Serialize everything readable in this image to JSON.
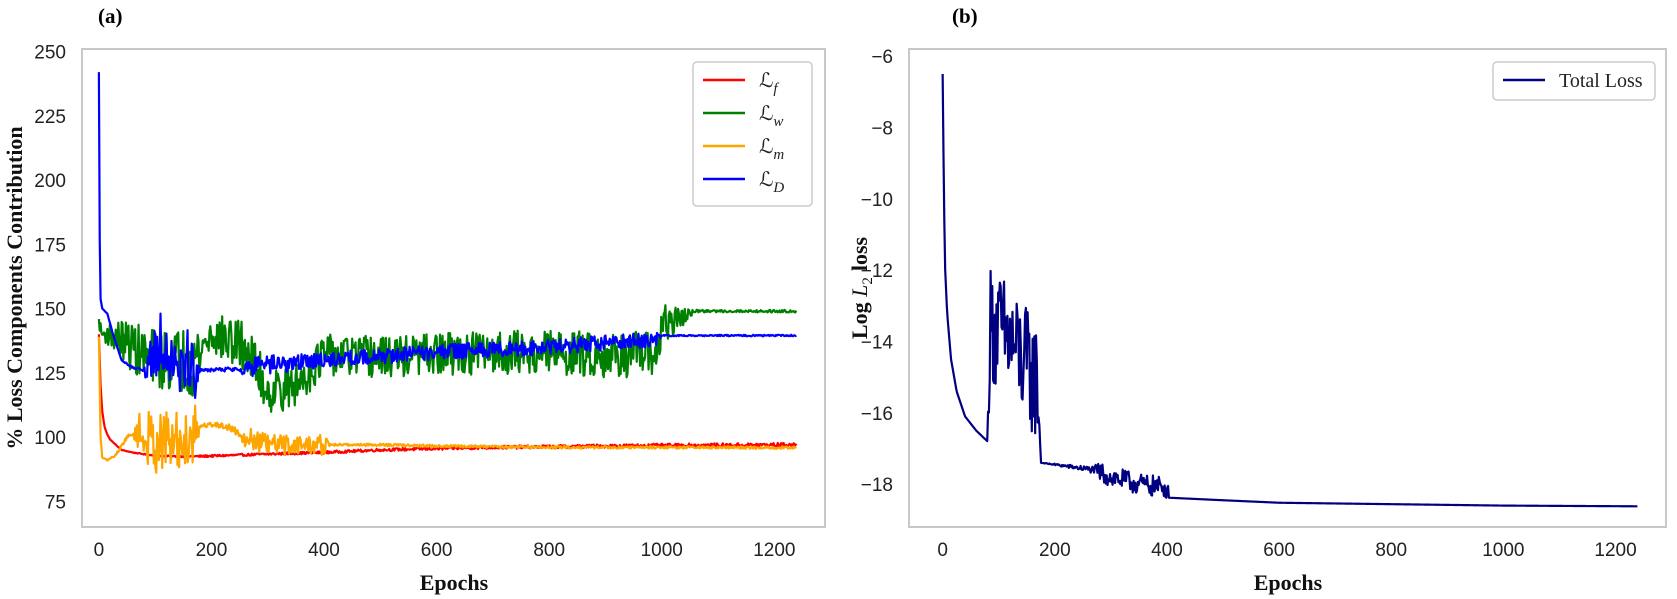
{
  "chart_data": [
    {
      "panel": "(a)",
      "type": "line",
      "xlabel": "Epochs",
      "ylabel": "% Loss Components Contribution",
      "xlim": [
        -30,
        1290
      ],
      "ylim": [
        65,
        251
      ],
      "xticks": [
        0,
        200,
        400,
        600,
        800,
        1000,
        1200
      ],
      "yticks": [
        75,
        100,
        125,
        150,
        175,
        200,
        225,
        250
      ],
      "grid": false,
      "legend_position": "top-right",
      "series": [
        {
          "name": "ℒ",
          "sub": "f",
          "color": "#ff0000",
          "points": [
            [
              0,
              140
            ],
            [
              3,
              120
            ],
            [
              6,
              110
            ],
            [
              10,
              104
            ],
            [
              15,
              101
            ],
            [
              20,
              99
            ],
            [
              30,
              97
            ],
            [
              40,
              95
            ],
            [
              60,
              94
            ],
            [
              90,
              93
            ],
            [
              130,
              92.5
            ],
            [
              180,
              92.5
            ],
            [
              250,
              93
            ],
            [
              320,
              93.5
            ],
            [
              400,
              94
            ],
            [
              500,
              95
            ],
            [
              600,
              95.5
            ],
            [
              700,
              96
            ],
            [
              800,
              96.2
            ],
            [
              900,
              96.5
            ],
            [
              1000,
              96.7
            ],
            [
              1100,
              96.8
            ],
            [
              1240,
              97
            ]
          ],
          "noise": [
            [
              0,
              0
            ],
            [
              180,
              0.4
            ],
            [
              1240,
              0.8
            ]
          ]
        },
        {
          "name": "ℒ",
          "sub": "w",
          "color": "#008000",
          "points": [
            [
              0,
              145
            ],
            [
              5,
              140
            ],
            [
              15,
              140
            ],
            [
              40,
              138
            ],
            [
              80,
              132
            ],
            [
              120,
              130
            ],
            [
              170,
              130
            ],
            [
              200,
              140
            ],
            [
              260,
              135
            ],
            [
              300,
              118
            ],
            [
              350,
              120
            ],
            [
              400,
              132
            ],
            [
              500,
              131
            ],
            [
              600,
              132
            ],
            [
              700,
              133
            ],
            [
              800,
              133
            ],
            [
              900,
              132
            ],
            [
              990,
              132
            ],
            [
              1000,
              143
            ],
            [
              1040,
              147
            ],
            [
              1060,
              149
            ],
            [
              1240,
              149
            ]
          ],
          "noise": [
            [
              0,
              2
            ],
            [
              60,
              10
            ],
            [
              170,
              14
            ],
            [
              200,
              8
            ],
            [
              260,
              10
            ],
            [
              400,
              8
            ],
            [
              1000,
              9
            ],
            [
              1040,
              3
            ],
            [
              1060,
              0.5
            ],
            [
              1240,
              0.5
            ]
          ]
        },
        {
          "name": "ℒ",
          "sub": "m",
          "color": "#ffa500",
          "points": [
            [
              0,
              139
            ],
            [
              3,
              100
            ],
            [
              6,
              92
            ],
            [
              15,
              91
            ],
            [
              30,
              93
            ],
            [
              50,
              100
            ],
            [
              70,
              102
            ],
            [
              90,
              98
            ],
            [
              150,
              98
            ],
            [
              175,
              104
            ],
            [
              200,
              105
            ],
            [
              230,
              104
            ],
            [
              260,
              100
            ],
            [
              300,
              97
            ],
            [
              400,
              97
            ],
            [
              500,
              97
            ],
            [
              600,
              96.5
            ],
            [
              800,
              96
            ],
            [
              1000,
              96
            ],
            [
              1240,
              95.8
            ]
          ],
          "noise": [
            [
              0,
              0
            ],
            [
              60,
              0.8
            ],
            [
              80,
              12
            ],
            [
              175,
              12
            ],
            [
              180,
              0.8
            ],
            [
              250,
              1.5
            ],
            [
              260,
              4
            ],
            [
              400,
              4
            ],
            [
              410,
              0.5
            ],
            [
              1240,
              0.5
            ]
          ]
        },
        {
          "name": "ℒ",
          "sub": "D",
          "color": "#0000ff",
          "points": [
            [
              0,
              242
            ],
            [
              2,
              155
            ],
            [
              6,
              150
            ],
            [
              15,
              148
            ],
            [
              25,
              140
            ],
            [
              40,
              130
            ],
            [
              60,
              127
            ],
            [
              80,
              126
            ],
            [
              90,
              130
            ],
            [
              110,
              138
            ],
            [
              160,
              128
            ],
            [
              180,
              126
            ],
            [
              250,
              126.5
            ],
            [
              300,
              128
            ],
            [
              400,
              130
            ],
            [
              600,
              133
            ],
            [
              800,
              135
            ],
            [
              990,
              138
            ],
            [
              1000,
              139.5
            ],
            [
              1240,
              139.5
            ]
          ],
          "noise": [
            [
              0,
              0
            ],
            [
              80,
              0.5
            ],
            [
              90,
              14
            ],
            [
              170,
              14
            ],
            [
              180,
              0.5
            ],
            [
              250,
              1
            ],
            [
              260,
              4
            ],
            [
              400,
              3
            ],
            [
              990,
              3
            ],
            [
              1000,
              0.3
            ],
            [
              1240,
              0.3
            ]
          ]
        }
      ]
    },
    {
      "panel": "(b)",
      "type": "line",
      "xlabel": "Epochs",
      "ylabel": "Log",
      "ylabel_var": "L",
      "ylabel_sub": "2",
      "ylabel_suffix": "loss",
      "xlim": [
        -60,
        1290
      ],
      "ylim": [
        -19.2,
        -5.8
      ],
      "xticks": [
        0,
        200,
        400,
        600,
        800,
        1000,
        1200
      ],
      "yticks": [
        -6,
        -8,
        -10,
        -12,
        -14,
        -16,
        -18
      ],
      "grid": false,
      "legend_position": "top-right",
      "series": [
        {
          "name": "Total Loss",
          "color": "#000080",
          "points": [
            [
              0,
              -6.5
            ],
            [
              2,
              -9.5
            ],
            [
              4,
              -11.8
            ],
            [
              8,
              -13.2
            ],
            [
              15,
              -14.5
            ],
            [
              25,
              -15.4
            ],
            [
              40,
              -16.1
            ],
            [
              60,
              -16.5
            ],
            [
              80,
              -16.8
            ],
            [
              85,
              -13.5
            ],
            [
              120,
              -14.0
            ],
            [
              170,
              -15.2
            ],
            [
              175,
              -17.4
            ],
            [
              200,
              -17.45
            ],
            [
              270,
              -17.6
            ],
            [
              300,
              -17.8
            ],
            [
              350,
              -18.0
            ],
            [
              400,
              -18.1
            ],
            [
              405,
              -18.38
            ],
            [
              500,
              -18.45
            ],
            [
              600,
              -18.52
            ],
            [
              800,
              -18.56
            ],
            [
              1000,
              -18.6
            ],
            [
              1240,
              -18.62
            ]
          ],
          "noise": [
            [
              0,
              0
            ],
            [
              80,
              0
            ],
            [
              85,
              1.7
            ],
            [
              170,
              1.7
            ],
            [
              175,
              0
            ],
            [
              270,
              0.1
            ],
            [
              280,
              0.3
            ],
            [
              400,
              0.3
            ],
            [
              405,
              0
            ],
            [
              1240,
              0
            ]
          ]
        }
      ]
    }
  ]
}
